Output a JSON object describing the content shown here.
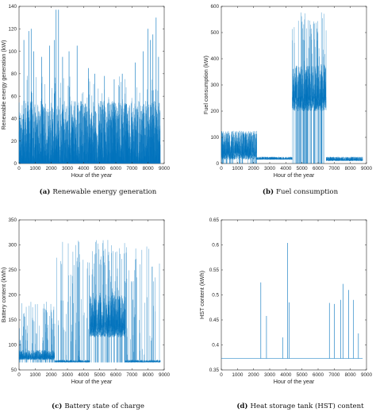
{
  "series_color": "#0072BD",
  "chart_data": [
    {
      "type": "line",
      "caption_tag": "(a)",
      "caption": "Renewable energy generation",
      "xlabel": "Hour of the year",
      "ylabel": "Renewable energy generation (kW)",
      "xlim": [
        0,
        9000
      ],
      "ylim": [
        0,
        140
      ],
      "xticks": [
        0,
        1000,
        2000,
        3000,
        4000,
        5000,
        6000,
        7000,
        8000,
        9000
      ],
      "yticks": [
        0,
        20,
        40,
        60,
        80,
        100,
        120,
        140
      ],
      "grid": false,
      "series": [
        {
          "x_range": [
            0,
            8760
          ],
          "pattern": "noisy hourly signal, dense between 0 and about 40 kW",
          "segments": [
            {
              "from": 0,
              "to": 8760,
              "low": 0,
              "typical_high": 40
            }
          ],
          "spikes": [
            {
              "x": 300,
              "y": 110
            },
            {
              "x": 600,
              "y": 118
            },
            {
              "x": 750,
              "y": 120
            },
            {
              "x": 900,
              "y": 100
            },
            {
              "x": 1400,
              "y": 95
            },
            {
              "x": 1900,
              "y": 105
            },
            {
              "x": 2200,
              "y": 110
            },
            {
              "x": 2300,
              "y": 137
            },
            {
              "x": 2450,
              "y": 137
            },
            {
              "x": 2700,
              "y": 95
            },
            {
              "x": 3100,
              "y": 100
            },
            {
              "x": 3600,
              "y": 105
            },
            {
              "x": 4300,
              "y": 85
            },
            {
              "x": 4700,
              "y": 80
            },
            {
              "x": 5300,
              "y": 78
            },
            {
              "x": 5900,
              "y": 75
            },
            {
              "x": 6400,
              "y": 80
            },
            {
              "x": 7200,
              "y": 90
            },
            {
              "x": 7700,
              "y": 100
            },
            {
              "x": 8000,
              "y": 120
            },
            {
              "x": 8150,
              "y": 110
            },
            {
              "x": 8300,
              "y": 115
            },
            {
              "x": 8500,
              "y": 130
            },
            {
              "x": 8650,
              "y": 95
            }
          ]
        }
      ]
    },
    {
      "type": "line",
      "caption_tag": "(b)",
      "caption": "Fuel consumption",
      "xlabel": "Hour of the year",
      "ylabel": "Fuel consumption (kW)",
      "xlim": [
        0,
        9000
      ],
      "ylim": [
        0,
        600
      ],
      "xticks": [
        0,
        1000,
        2000,
        3000,
        4000,
        5000,
        6000,
        7000,
        8000,
        9000
      ],
      "yticks": [
        0,
        100,
        200,
        300,
        400,
        500,
        600
      ],
      "grid": false,
      "series": [
        {
          "x_range": [
            0,
            8760
          ],
          "segments": [
            {
              "from": 0,
              "to": 2200,
              "low": 0,
              "band": [
                15,
                115
              ],
              "top": 125
            },
            {
              "from": 2200,
              "to": 4400,
              "low": 15,
              "band": [
                15,
                25
              ],
              "top": 25
            },
            {
              "from": 4400,
              "to": 6500,
              "low": 0,
              "band": [
                200,
                375
              ],
              "top": 578
            },
            {
              "from": 6500,
              "to": 8760,
              "low": 10,
              "band": [
                10,
                25
              ],
              "top": 25
            }
          ]
        }
      ]
    },
    {
      "type": "line",
      "caption_tag": "(c)",
      "caption": "Battery state of charge",
      "xlabel": "Hour of the year",
      "ylabel": "Battery content (kWh)",
      "xlim": [
        0,
        9000
      ],
      "ylim": [
        50,
        350
      ],
      "xticks": [
        0,
        1000,
        2000,
        3000,
        4000,
        5000,
        6000,
        7000,
        8000,
        9000
      ],
      "yticks": [
        50,
        100,
        150,
        200,
        250,
        300,
        350
      ],
      "grid": false,
      "series": [
        {
          "x_range": [
            0,
            8760
          ],
          "segments": [
            {
              "from": 0,
              "to": 2200,
              "low": 65,
              "band": [
                70,
                90
              ],
              "top": 190
            },
            {
              "from": 2200,
              "to": 4400,
              "low": 65,
              "band": [
                65,
                70
              ],
              "top": 310
            },
            {
              "from": 4400,
              "to": 6600,
              "low": 65,
              "band": [
                115,
                200
              ],
              "top": 310
            },
            {
              "from": 6600,
              "to": 8760,
              "low": 65,
              "band": [
                65,
                70
              ],
              "top": 300
            }
          ]
        }
      ]
    },
    {
      "type": "line",
      "caption_tag": "(d)",
      "caption": "Heat storage tank (HST) content",
      "xlabel": "Hour of the year",
      "ylabel": "HST content (kWh)",
      "xlim": [
        0,
        9000
      ],
      "ylim": [
        0.35,
        0.65
      ],
      "xticks": [
        0,
        1000,
        2000,
        3000,
        4000,
        5000,
        6000,
        7000,
        8000,
        9000
      ],
      "yticks": [
        0.35,
        0.4,
        0.45,
        0.5,
        0.55,
        0.6,
        0.65
      ],
      "grid": false,
      "series": [
        {
          "x_range": [
            0,
            8760
          ],
          "baseline": 0.373,
          "spikes": [
            {
              "x": 2450,
              "y": 0.525
            },
            {
              "x": 2800,
              "y": 0.458
            },
            {
              "x": 3800,
              "y": 0.415
            },
            {
              "x": 4100,
              "y": 0.604
            },
            {
              "x": 4200,
              "y": 0.485
            },
            {
              "x": 6700,
              "y": 0.484
            },
            {
              "x": 7000,
              "y": 0.482
            },
            {
              "x": 7400,
              "y": 0.49
            },
            {
              "x": 7550,
              "y": 0.522
            },
            {
              "x": 7900,
              "y": 0.51
            },
            {
              "x": 8200,
              "y": 0.49
            },
            {
              "x": 8500,
              "y": 0.423
            }
          ]
        }
      ]
    }
  ]
}
